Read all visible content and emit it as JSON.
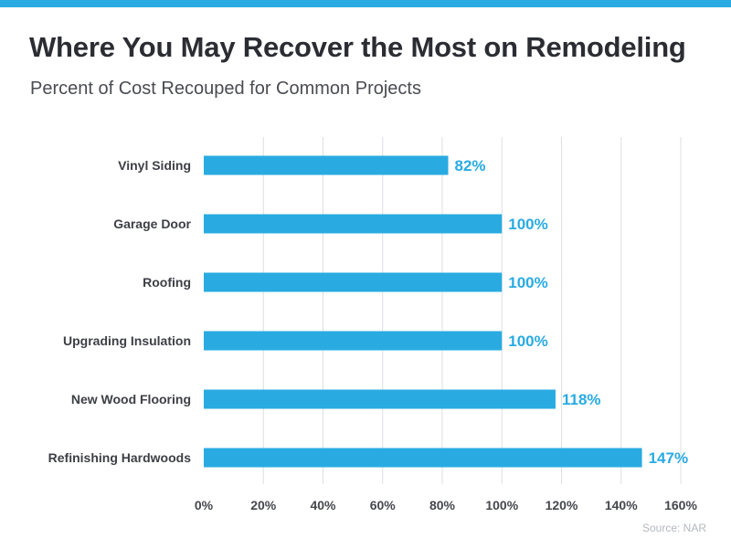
{
  "title": "Where You May Recover the Most on Remodeling",
  "subtitle": "Percent of Cost Recouped for Common Projects",
  "source": "Source: NAR",
  "colors": {
    "accent": "#29ABE2",
    "label_text": "#3d3f45",
    "value_text": "#29ABE2",
    "tick_text": "#45474d",
    "grid": "#dcdfe3"
  },
  "chart_data": {
    "type": "bar",
    "orientation": "horizontal",
    "categories": [
      "Vinyl Siding",
      "Garage Door",
      "Roofing",
      "Upgrading Insulation",
      "New Wood Flooring",
      "Refinishing Hardwoods"
    ],
    "values": [
      82,
      100,
      100,
      100,
      118,
      147
    ],
    "data_labels": [
      "82%",
      "100%",
      "100%",
      "100%",
      "118%",
      "147%"
    ],
    "xlim": [
      0,
      160
    ],
    "xticks": [
      0,
      20,
      40,
      60,
      80,
      100,
      120,
      140,
      160
    ],
    "xtick_labels": [
      "0%",
      "20%",
      "40%",
      "60%",
      "80%",
      "100%",
      "120%",
      "140%",
      "160%"
    ],
    "grid": true,
    "legend": "none"
  }
}
